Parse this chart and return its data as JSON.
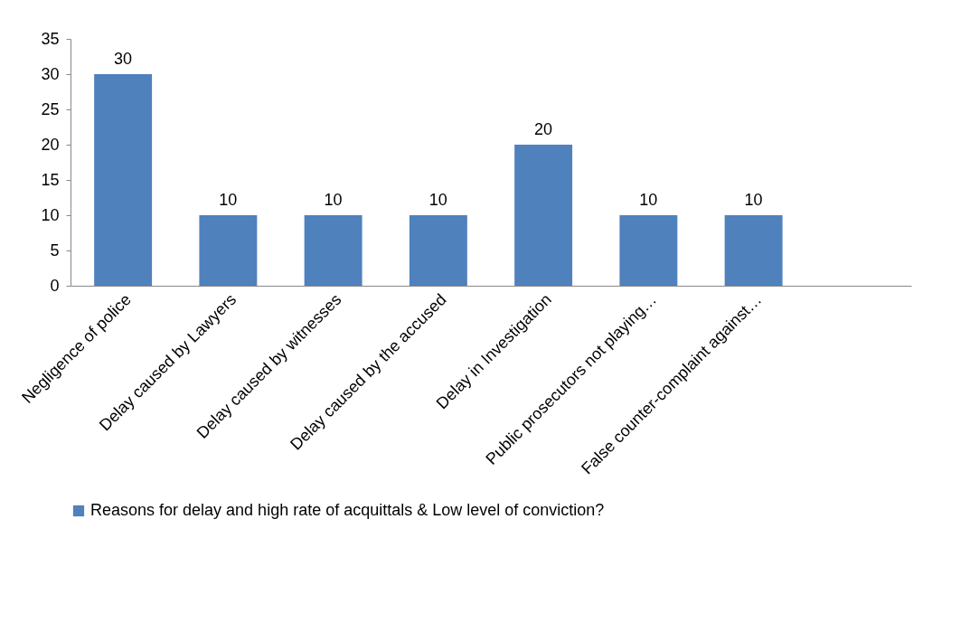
{
  "chart_data": {
    "type": "bar",
    "categories": [
      "Negligence of police",
      "Delay caused by Lawyers",
      "Delay caused by witnesses",
      "Delay caused by the accused",
      "Delay in Investigation",
      "Public prosecutors not playing…",
      "False counter-complaint against…",
      null
    ],
    "series": [
      {
        "name": "Reasons for delay and high rate of acquittals & Low level of conviction?",
        "color": "#4f81bd",
        "values": [
          30,
          10,
          10,
          10,
          20,
          10,
          10,
          null
        ]
      }
    ],
    "ylim": [
      0,
      35
    ],
    "yticks": [
      0,
      5,
      10,
      15,
      20,
      25,
      30,
      35
    ],
    "grid": false,
    "legend": "bottom",
    "data_labels": true
  }
}
